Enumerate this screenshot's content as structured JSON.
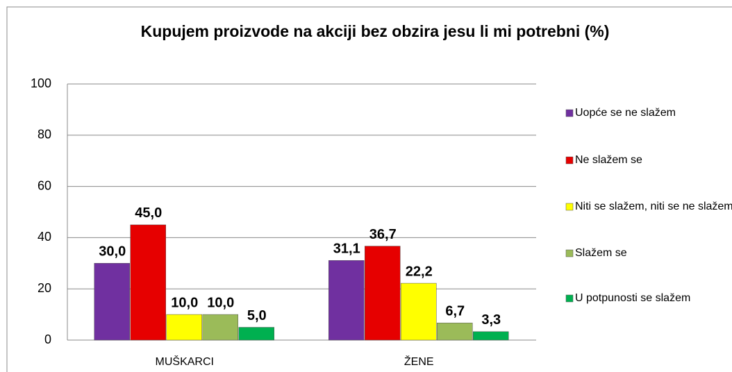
{
  "chart_data": {
    "type": "bar",
    "title": "Kupujem proizvode na akciji bez obzira jesu li mi potrebni (%)",
    "categories": [
      "MUŠKARCI",
      "ŽENE"
    ],
    "series": [
      {
        "name": "Uopće se ne slažem",
        "color": "#7030a0",
        "values": [
          30.0,
          31.1
        ],
        "value_labels": [
          "30,0",
          "31,1"
        ]
      },
      {
        "name": "Ne slažem se",
        "color": "#e60000",
        "values": [
          45.0,
          36.7
        ],
        "value_labels": [
          "45,0",
          "36,7"
        ]
      },
      {
        "name": "Niti se slažem, niti se ne slažem",
        "color": "#ffff00",
        "values": [
          10.0,
          22.2
        ],
        "value_labels": [
          "10,0",
          "22,2"
        ]
      },
      {
        "name": "Slažem se",
        "color": "#9bbb59",
        "values": [
          10.0,
          6.7
        ],
        "value_labels": [
          "10,0",
          "6,7"
        ]
      },
      {
        "name": "U potpunosti se slažem",
        "color": "#00b050",
        "values": [
          5.0,
          3.3
        ],
        "value_labels": [
          "5,0",
          "3,3"
        ]
      }
    ],
    "ylim": [
      0,
      100
    ],
    "yticks": [
      0,
      20,
      40,
      60,
      80,
      100
    ],
    "grid": true,
    "legend": "right"
  }
}
